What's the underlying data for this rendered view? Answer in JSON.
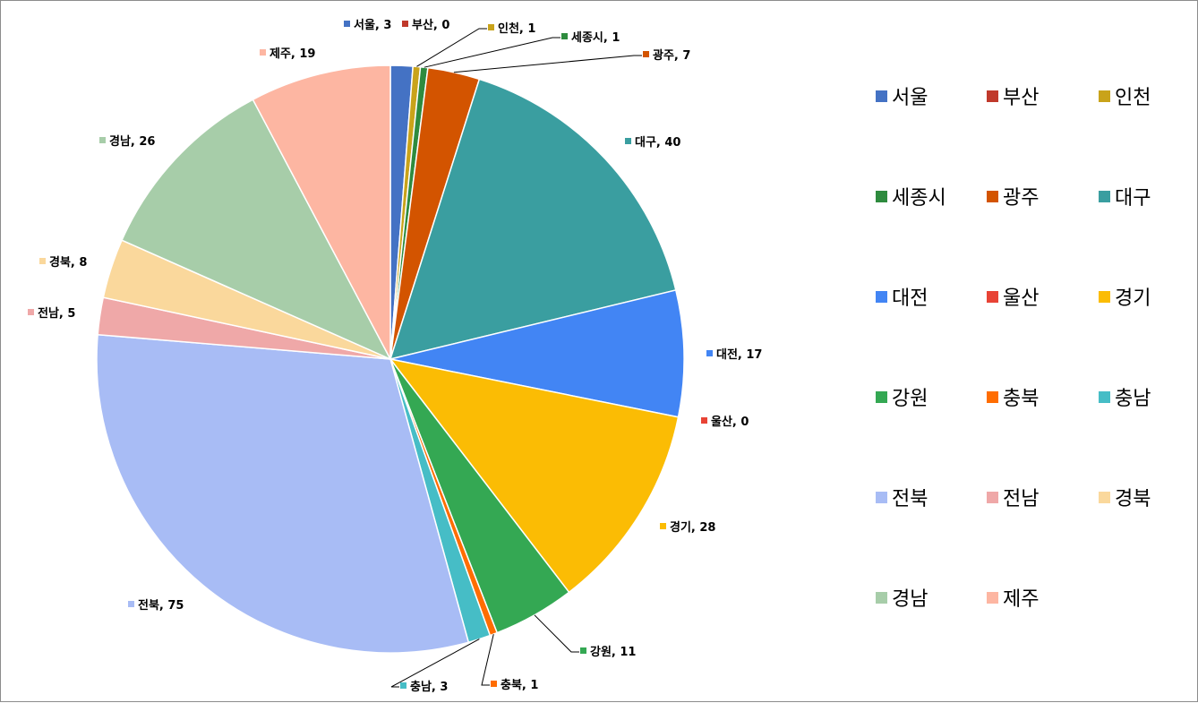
{
  "chart_data": {
    "type": "pie",
    "title": "",
    "legend_position": "right",
    "series": [
      {
        "categories": [
          "서울",
          "부산",
          "인천",
          "세종시",
          "광주",
          "대구",
          "대전",
          "울산",
          "경기",
          "강원",
          "충북",
          "충남",
          "전북",
          "전남",
          "경북",
          "경남",
          "제주"
        ],
        "values": [
          3,
          0,
          1,
          1,
          7,
          40,
          17,
          0,
          28,
          11,
          1,
          3,
          75,
          5,
          8,
          26,
          19
        ],
        "colors": [
          "#4472C4",
          "#C0392B",
          "#C9A31A",
          "#2E8B3E",
          "#D35400",
          "#3A9EA0",
          "#4285F4",
          "#E84335",
          "#FBBC04",
          "#34A853",
          "#FF6D01",
          "#46BDC6",
          "#A8BCF5",
          "#EFA8A8",
          "#FAD89C",
          "#A7CDA9",
          "#FDB6A2"
        ]
      }
    ]
  }
}
